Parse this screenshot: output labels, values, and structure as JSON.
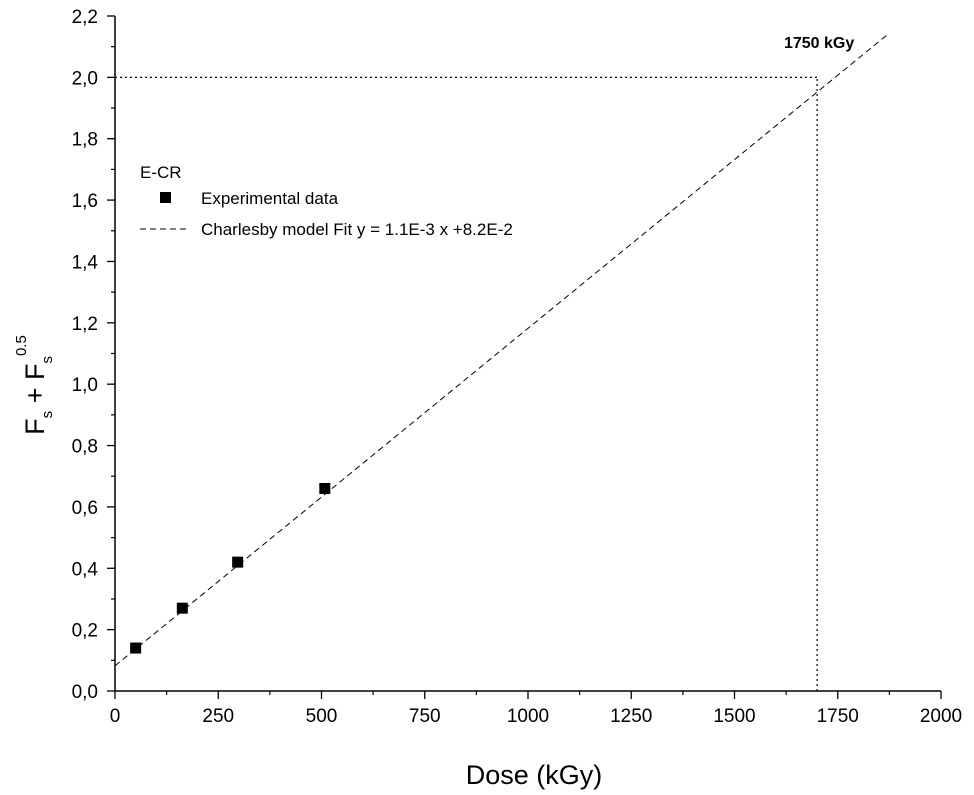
{
  "chart_data": {
    "type": "scatter",
    "title": "",
    "xlabel": "Dose (kGy)",
    "ylabel": {
      "main": "F",
      "sub": "s",
      "plus": " + F",
      "sub2": "s",
      "sup": "0.5"
    },
    "xlim": [
      0,
      2000
    ],
    "ylim": [
      0,
      2.2
    ],
    "x_ticks": [
      0,
      250,
      500,
      750,
      1000,
      1250,
      1500,
      1750,
      2000
    ],
    "x_tick_labels": [
      "0",
      "250",
      "500",
      "750",
      "1000",
      "1250",
      "1500",
      "1750",
      "2000"
    ],
    "y_ticks": [
      0,
      0.2,
      0.4,
      0.6,
      0.8,
      1.0,
      1.2,
      1.4,
      1.6,
      1.8,
      2.0,
      2.2
    ],
    "y_tick_labels": [
      "0,0",
      "0,2",
      "0,4",
      "0,6",
      "0,8",
      "1,0",
      "1,2",
      "1,4",
      "1,6",
      "1,8",
      "2,0",
      "2,2"
    ],
    "grid": false,
    "legend": {
      "title": "E-CR",
      "placement": "upper-left",
      "entries": [
        "Experimental data",
        "Charlesby model Fit y = 1.1E-3 x +8.2E-2"
      ]
    },
    "series": [
      {
        "name": "Experimental data",
        "kind": "scatter",
        "marker": "square",
        "color": "#000000",
        "x": [
          50,
          163,
          297,
          508
        ],
        "y": [
          0.14,
          0.27,
          0.42,
          0.66
        ]
      },
      {
        "name": "Charlesby model Fit y = 1.1E-3 x +8.2E-2",
        "kind": "line",
        "style": "dashed",
        "color": "#000000",
        "slope": 0.0011,
        "intercept": 0.082,
        "x_range": [
          0,
          1870
        ]
      }
    ],
    "reference_lines": [
      {
        "kind": "horizontal",
        "y": 2.0,
        "x_range": [
          0,
          1700
        ],
        "style": "dotted"
      },
      {
        "kind": "vertical",
        "x": 1700,
        "y_range": [
          0,
          2.0
        ],
        "style": "dotted"
      }
    ],
    "annotations": [
      {
        "text": "1750 kGy",
        "x": 1700,
        "y": 2.09
      }
    ]
  }
}
